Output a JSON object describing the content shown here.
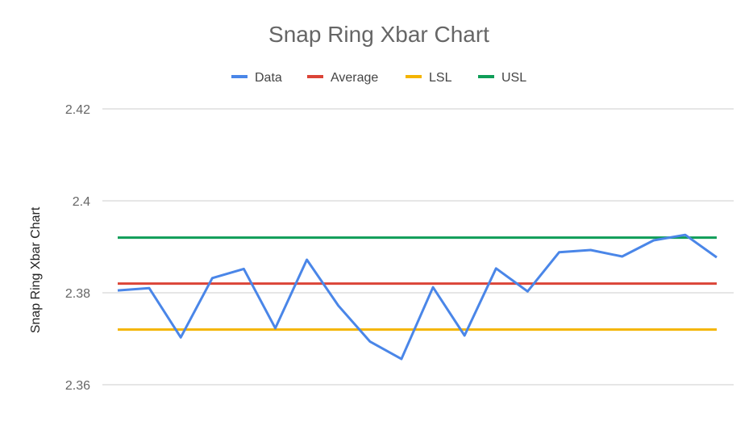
{
  "chart_data": {
    "type": "line",
    "title": "Snap Ring Xbar Chart",
    "xlabel": "",
    "ylabel": "Snap Ring Xbar Chart",
    "ylim": [
      2.36,
      2.42
    ],
    "yticks": [
      "2.36",
      "2.38",
      "2.4",
      "2.42"
    ],
    "ytick_values": [
      2.36,
      2.38,
      2.4,
      2.42
    ],
    "grid": true,
    "legend_position": "top",
    "colors": {
      "Data": "#4a86e8",
      "Average": "#db4437",
      "LSL": "#f4b400",
      "USL": "#0f9d58"
    },
    "x": [
      1,
      2,
      3,
      4,
      5,
      6,
      7,
      8,
      9,
      10,
      11,
      12,
      13,
      14,
      15,
      16,
      17,
      18,
      19,
      20
    ],
    "series": [
      {
        "name": "Data",
        "values": [
          2.3805,
          2.381,
          2.3703,
          2.3832,
          2.3852,
          2.3723,
          2.3872,
          2.3772,
          2.3694,
          2.3656,
          2.3812,
          2.3707,
          2.3853,
          2.3803,
          2.3888,
          2.3893,
          2.3879,
          2.3914,
          2.3926,
          2.3877
        ]
      },
      {
        "name": "Average",
        "values": [
          2.382,
          2.382,
          2.382,
          2.382,
          2.382,
          2.382,
          2.382,
          2.382,
          2.382,
          2.382,
          2.382,
          2.382,
          2.382,
          2.382,
          2.382,
          2.382,
          2.382,
          2.382,
          2.382,
          2.382
        ]
      },
      {
        "name": "LSL",
        "values": [
          2.372,
          2.372,
          2.372,
          2.372,
          2.372,
          2.372,
          2.372,
          2.372,
          2.372,
          2.372,
          2.372,
          2.372,
          2.372,
          2.372,
          2.372,
          2.372,
          2.372,
          2.372,
          2.372,
          2.372
        ]
      },
      {
        "name": "USL",
        "values": [
          2.392,
          2.392,
          2.392,
          2.392,
          2.392,
          2.392,
          2.392,
          2.392,
          2.392,
          2.392,
          2.392,
          2.392,
          2.392,
          2.392,
          2.392,
          2.392,
          2.392,
          2.392,
          2.392,
          2.392
        ]
      }
    ]
  }
}
